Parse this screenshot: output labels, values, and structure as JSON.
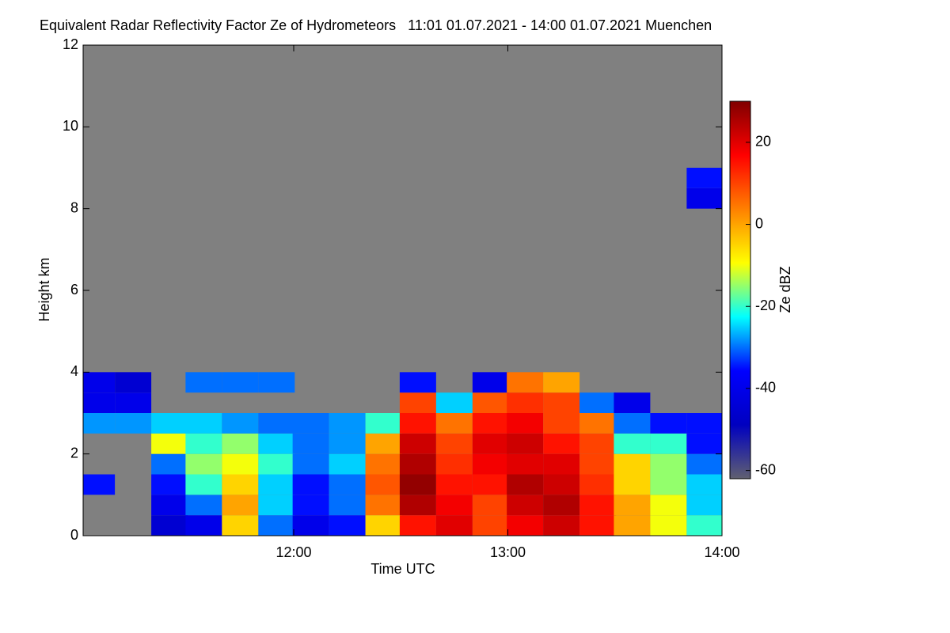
{
  "chart_data": {
    "type": "heatmap",
    "title": "Equivalent Radar Reflectivity Factor Ze of Hydrometeors   11:01 01.07.2021 - 14:00 01.07.2021 Muenchen",
    "xlabel": "Time UTC",
    "ylabel": "Height km",
    "colorbar_label": "Ze dBZ",
    "x": [
      11.08,
      11.25,
      11.42,
      11.58,
      11.75,
      11.92,
      12.08,
      12.25,
      12.42,
      12.58,
      12.75,
      12.92,
      13.08,
      13.25,
      13.42,
      13.58,
      13.75,
      13.92
    ],
    "y": [
      0.25,
      0.75,
      1.25,
      1.75,
      2.25,
      2.75,
      3.25,
      3.75,
      4.25,
      4.75,
      5.25,
      5.75,
      6.25,
      6.75,
      7.25,
      7.75,
      8.25,
      8.75
    ],
    "z": [
      [
        null,
        null,
        -45,
        -40,
        -5,
        -30,
        -40,
        -35,
        -5,
        15,
        20,
        10,
        18,
        22,
        15,
        0,
        -10,
        -20
      ],
      [
        null,
        null,
        -40,
        -30,
        0,
        -25,
        -35,
        -30,
        5,
        25,
        18,
        10,
        22,
        25,
        15,
        0,
        -10,
        -25
      ],
      [
        -35,
        null,
        -35,
        -20,
        -5,
        -25,
        -35,
        -30,
        8,
        28,
        15,
        15,
        25,
        22,
        12,
        -5,
        -15,
        -25
      ],
      [
        null,
        null,
        -30,
        -15,
        -10,
        -20,
        -30,
        -25,
        5,
        25,
        12,
        18,
        20,
        20,
        10,
        -5,
        -15,
        -30
      ],
      [
        null,
        null,
        -10,
        -20,
        -15,
        -25,
        -30,
        -28,
        0,
        22,
        10,
        20,
        22,
        15,
        10,
        -20,
        -20,
        -35
      ],
      [
        -28,
        -28,
        -25,
        -25,
        -28,
        -30,
        -30,
        -28,
        -20,
        15,
        5,
        15,
        18,
        10,
        5,
        -30,
        -35,
        -35
      ],
      [
        -40,
        -40,
        null,
        null,
        null,
        null,
        null,
        null,
        null,
        10,
        -25,
        8,
        12,
        10,
        -30,
        -40,
        null,
        null
      ],
      [
        -40,
        -45,
        null,
        -30,
        -30,
        -30,
        null,
        null,
        null,
        -35,
        null,
        -40,
        5,
        0,
        null,
        null,
        null,
        null
      ],
      [
        null,
        null,
        null,
        null,
        null,
        null,
        null,
        null,
        null,
        null,
        null,
        null,
        null,
        null,
        null,
        null,
        null,
        null
      ],
      [
        null,
        null,
        null,
        null,
        null,
        null,
        null,
        null,
        null,
        null,
        null,
        null,
        null,
        null,
        null,
        null,
        null,
        null
      ],
      [
        null,
        null,
        null,
        null,
        null,
        null,
        null,
        null,
        null,
        null,
        null,
        null,
        null,
        null,
        null,
        null,
        null,
        null
      ],
      [
        null,
        null,
        null,
        null,
        null,
        null,
        null,
        null,
        null,
        null,
        null,
        null,
        null,
        null,
        null,
        null,
        null,
        null
      ],
      [
        null,
        null,
        null,
        null,
        null,
        null,
        null,
        null,
        null,
        null,
        null,
        null,
        null,
        null,
        null,
        null,
        null,
        null
      ],
      [
        null,
        null,
        null,
        null,
        null,
        null,
        null,
        null,
        null,
        null,
        null,
        null,
        null,
        null,
        null,
        null,
        null,
        null
      ],
      [
        null,
        null,
        null,
        null,
        null,
        null,
        null,
        null,
        null,
        null,
        null,
        null,
        null,
        null,
        null,
        null,
        null,
        null
      ],
      [
        null,
        null,
        null,
        null,
        null,
        null,
        null,
        null,
        null,
        null,
        null,
        null,
        null,
        null,
        null,
        null,
        null,
        null
      ],
      [
        null,
        null,
        null,
        null,
        null,
        null,
        null,
        null,
        null,
        null,
        null,
        null,
        null,
        null,
        null,
        null,
        null,
        -40
      ],
      [
        null,
        null,
        null,
        null,
        null,
        null,
        null,
        null,
        null,
        null,
        null,
        null,
        null,
        null,
        null,
        null,
        null,
        -35
      ]
    ],
    "xlim": [
      11.0167,
      14.0
    ],
    "xticks": [
      {
        "value": 12,
        "label": "12:00"
      },
      {
        "value": 13,
        "label": "13:00"
      },
      {
        "value": 14,
        "label": "14:00"
      }
    ],
    "ylim": [
      0,
      12
    ],
    "yticks": [
      0,
      2,
      4,
      6,
      8,
      10,
      12
    ],
    "zlim": [
      -62,
      30
    ],
    "zticks": [
      -60,
      -40,
      -20,
      0,
      20
    ],
    "background": "#808080",
    "colormap": [
      "#606070",
      "#0000c0",
      "#0000ff",
      "#00ffff",
      "#ffff00",
      "#ff8000",
      "#ff0000",
      "#800000"
    ]
  }
}
